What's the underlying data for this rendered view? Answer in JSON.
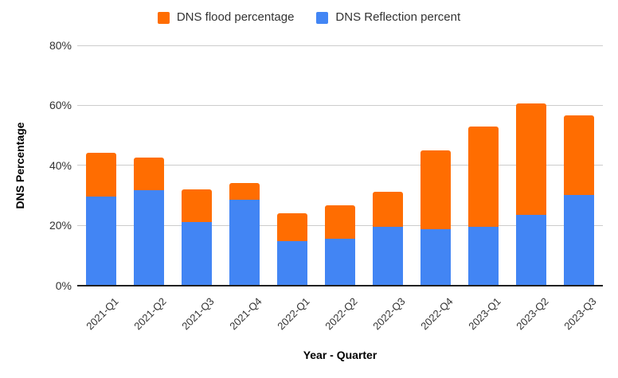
{
  "legend": {
    "items": [
      {
        "label": "DNS flood percentage",
        "color": "#FF6D01"
      },
      {
        "label": "DNS Reflection percent",
        "color": "#4285F4"
      }
    ]
  },
  "axes": {
    "y_title": "DNS Percentage",
    "x_title": "Year - Quarter",
    "y_ticks": [
      "80%",
      "60%",
      "40%",
      "20%",
      "0%"
    ]
  },
  "chart_data": {
    "type": "bar",
    "stacked": true,
    "title": "",
    "xlabel": "Year - Quarter",
    "ylabel": "DNS Percentage",
    "ylim": [
      0,
      80
    ],
    "grid": true,
    "legend_position": "top",
    "categories": [
      "2021-Q1",
      "2021-Q2",
      "2021-Q3",
      "2021-Q4",
      "2022-Q1",
      "2022-Q2",
      "2022-Q3",
      "2022-Q4",
      "2023-Q1",
      "2023-Q2",
      "2023-Q3"
    ],
    "series": [
      {
        "name": "DNS Reflection percent",
        "color": "#4285F4",
        "values": [
          29.5,
          31.5,
          21,
          28.5,
          14.5,
          15.5,
          19.5,
          18.5,
          19.5,
          23.5,
          30
        ]
      },
      {
        "name": "DNS flood percentage",
        "color": "#FF6D01",
        "values": [
          14.5,
          11,
          11,
          5.5,
          9.5,
          11,
          11.5,
          26.5,
          33.5,
          37,
          26.5
        ]
      }
    ]
  }
}
